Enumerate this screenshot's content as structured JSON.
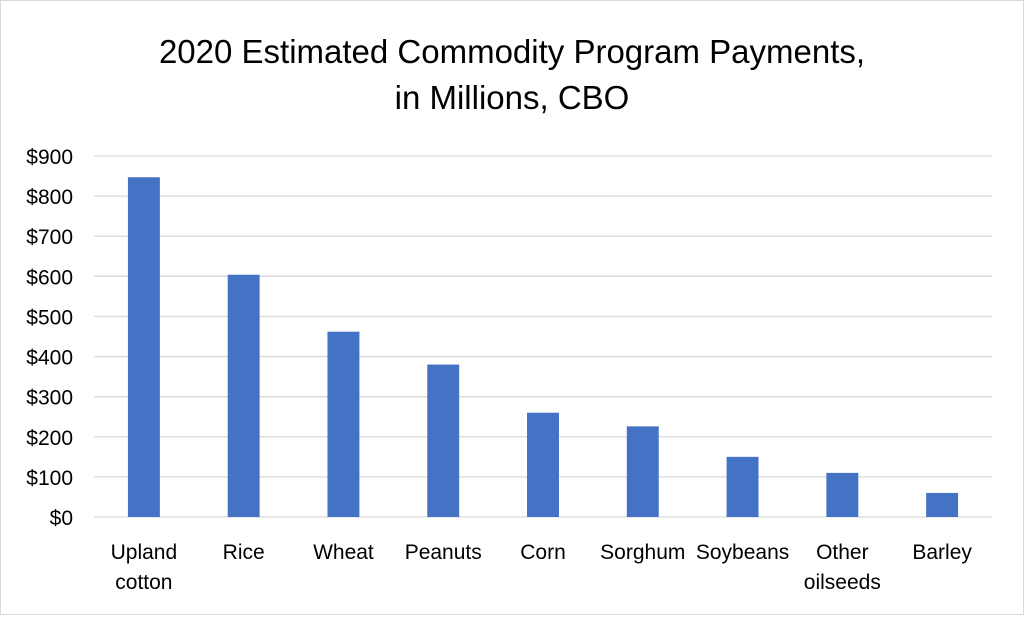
{
  "chart_data": {
    "type": "bar",
    "title_lines": [
      "2020 Estimated Commodity Program Payments,",
      "in Millions, CBO"
    ],
    "categories": [
      [
        "Upland",
        "cotton"
      ],
      [
        "Rice"
      ],
      [
        "Wheat"
      ],
      [
        "Peanuts"
      ],
      [
        "Corn"
      ],
      [
        "Sorghum"
      ],
      [
        "Soybeans"
      ],
      [
        "Other",
        "oilseeds"
      ],
      [
        "Barley"
      ]
    ],
    "values": [
      847,
      604,
      462,
      380,
      260,
      226,
      150,
      110,
      60
    ],
    "ylim": [
      0,
      900
    ],
    "yticks": [
      0,
      100,
      200,
      300,
      400,
      500,
      600,
      700,
      800,
      900
    ],
    "ytick_labels": [
      "$0",
      "$100",
      "$200",
      "$300",
      "$400",
      "$500",
      "$600",
      "$700",
      "$800",
      "$900"
    ],
    "xlabel": "",
    "ylabel": "",
    "grid": true,
    "legend": false,
    "bar_color": "#4472c4",
    "grid_color": "#d9d9d9"
  }
}
